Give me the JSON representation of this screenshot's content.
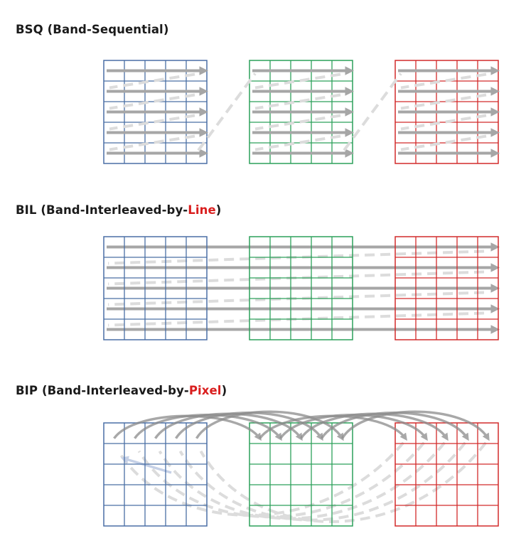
{
  "sections": [
    {
      "abbr": "BSQ",
      "name_prefix": "(Band-Sequential)",
      "name_highlight": "",
      "name_suffix": ""
    },
    {
      "abbr": "BIL",
      "name_prefix": "(Band-Interleaved-by-",
      "name_highlight": "Line",
      "name_suffix": ")"
    },
    {
      "abbr": "BIP",
      "name_prefix": "(Band-Interleaved-by-",
      "name_highlight": "Pixel",
      "name_suffix": ")"
    }
  ],
  "grid": {
    "rows": 5,
    "cols": 5
  },
  "bands": [
    {
      "color": "#4a6fa5"
    },
    {
      "color": "#2ca05a"
    },
    {
      "color": "#d22b2b"
    }
  ],
  "colors": {
    "highlight": "#d91e1e",
    "arrow_solid": "#a6a6a6",
    "arrow_dashed": "#dcdcdc",
    "arc_dark": "#8c8c8c"
  }
}
